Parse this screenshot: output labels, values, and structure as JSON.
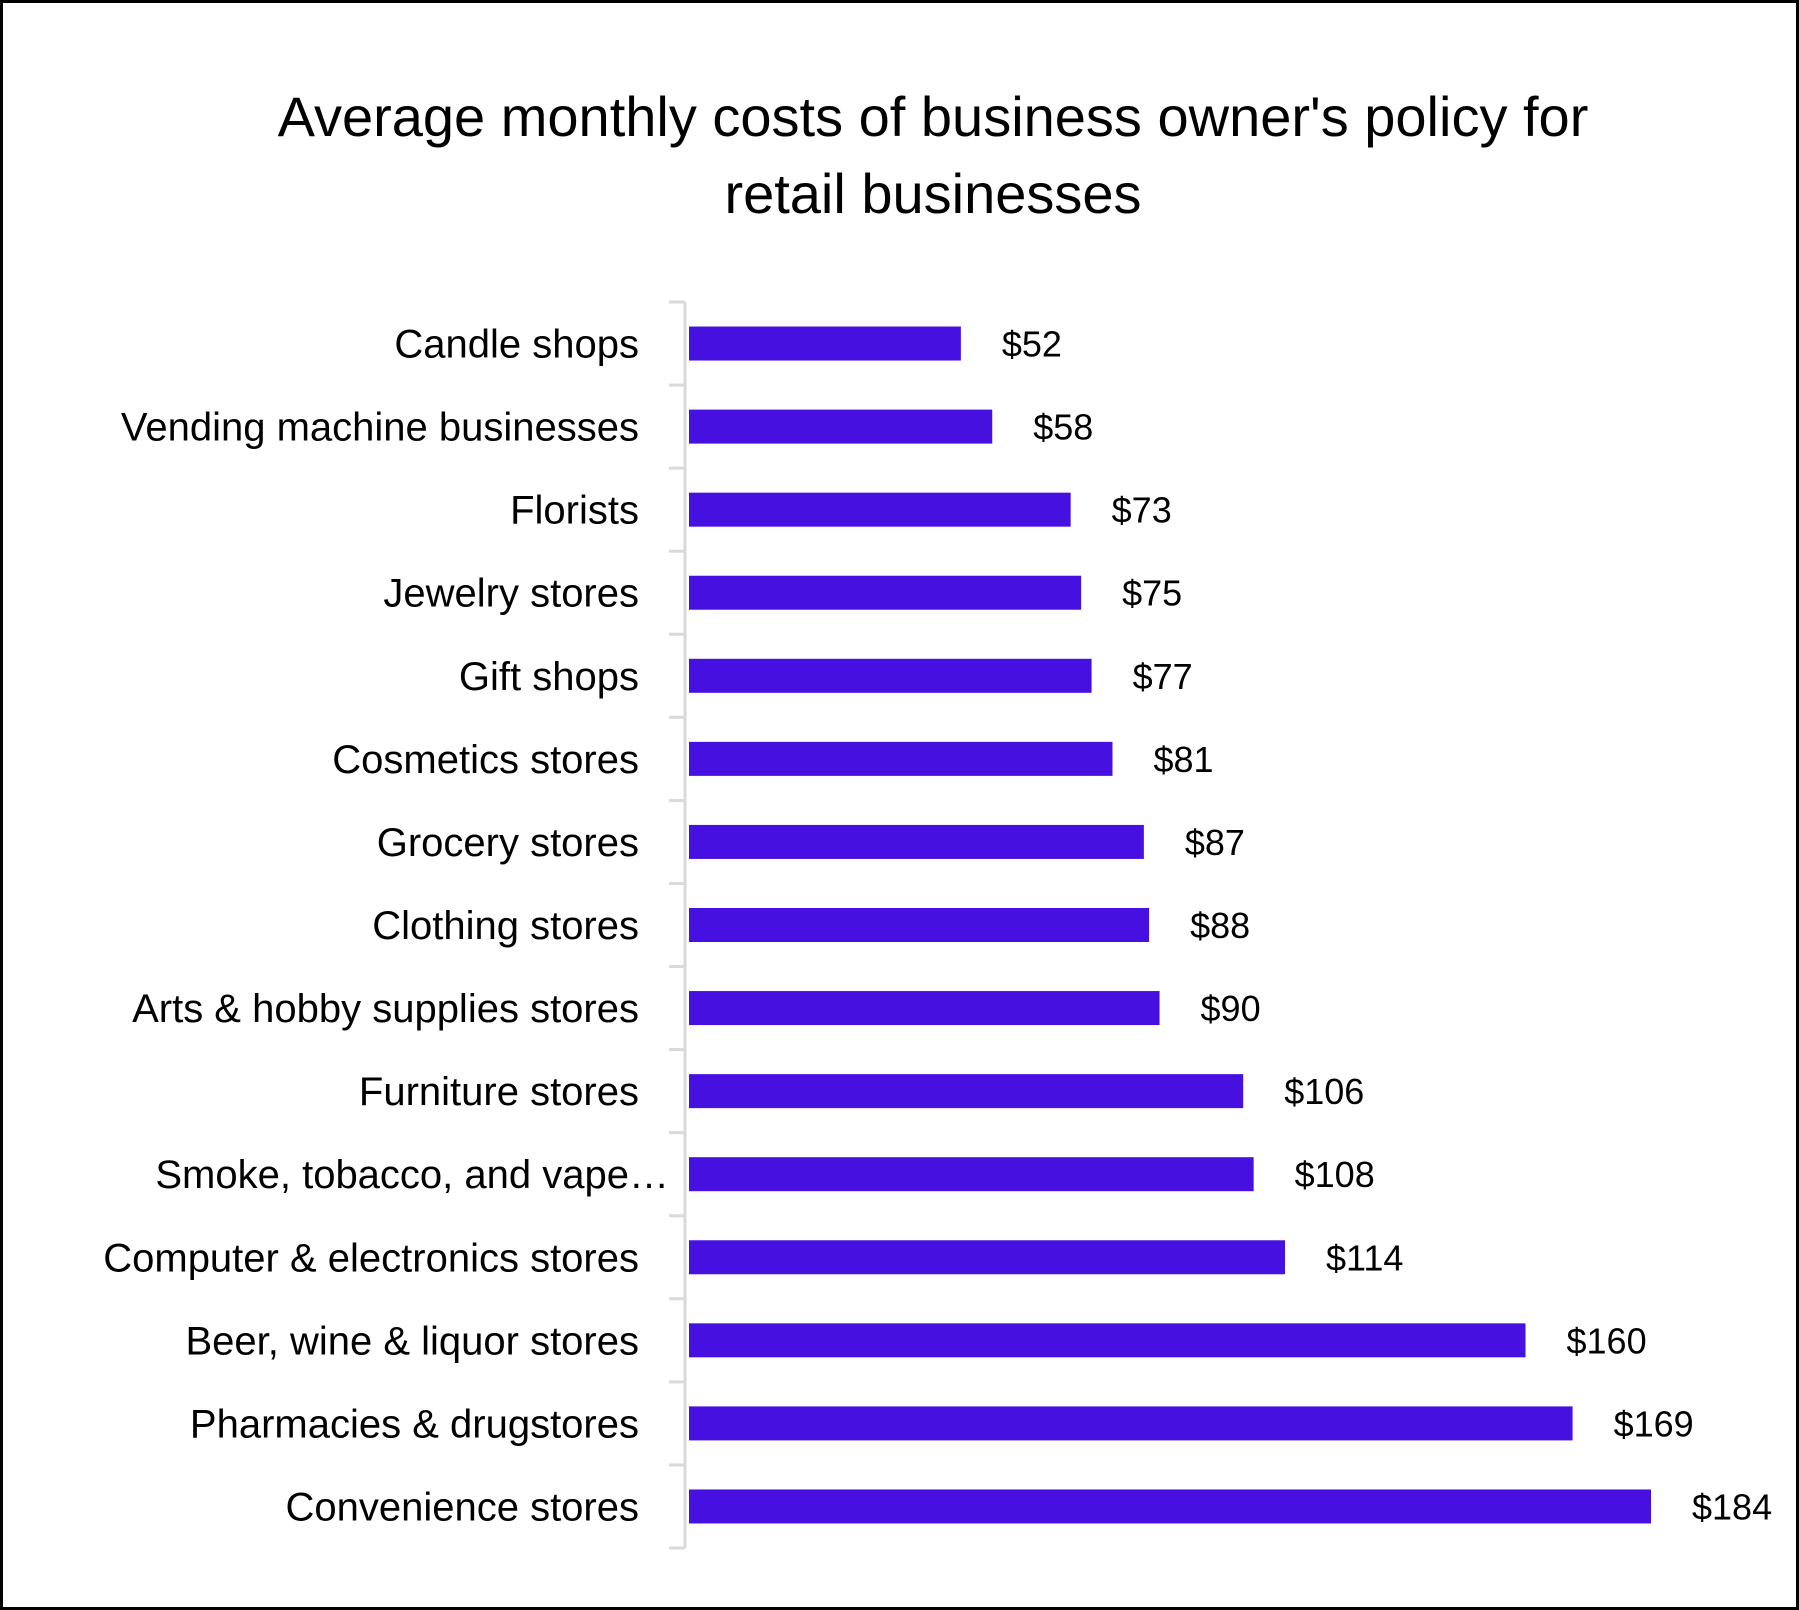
{
  "chart_data": {
    "type": "bar",
    "orientation": "horizontal",
    "title": "Average monthly costs of business owner's policy for retail businesses",
    "title_lines": [
      "Average monthly costs of business owner's policy for",
      "retail businesses"
    ],
    "categories": [
      "Candle shops",
      "Vending machine businesses",
      "Florists",
      "Jewelry stores",
      "Gift shops",
      "Cosmetics stores",
      "Grocery stores",
      "Clothing stores",
      "Arts & hobby supplies stores",
      "Furniture stores",
      "Smoke, tobacco, and vape…",
      "Computer & electronics stores",
      "Beer, wine & liquor stores",
      "Pharmacies & drugstores",
      "Convenience stores"
    ],
    "values": [
      52,
      58,
      73,
      75,
      77,
      81,
      87,
      88,
      90,
      106,
      108,
      114,
      160,
      169,
      184
    ],
    "data_labels": [
      "$52",
      "$58",
      "$73",
      "$75",
      "$77",
      "$81",
      "$87",
      "$88",
      "$90",
      "$106",
      "$108",
      "$114",
      "$160",
      "$169",
      "$184"
    ],
    "xlabel": "",
    "ylabel": "",
    "xlim": [
      0,
      184
    ],
    "grid": false,
    "legend": "none",
    "colors": {
      "bar": "#4610E0",
      "axis": "#D9D9D9",
      "border": "#000000",
      "text": "#000000"
    }
  }
}
